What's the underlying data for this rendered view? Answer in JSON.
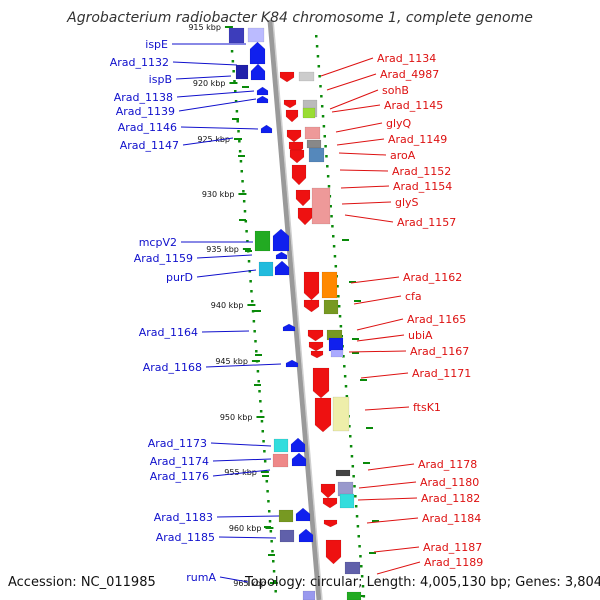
{
  "title": "Agrobacterium radiobacter K84 chromosome 1, complete genome",
  "footer": {
    "accession": "Accession: NC_011985",
    "summary": "Topology: circular; Length: 4,005,130 bp; Genes: 3,804"
  },
  "colors": {
    "left_label": "#1010cc",
    "right_label": "#dd1111",
    "backbone": "#9a9a9a",
    "tick": "#0a8a0a",
    "tick_label": "#111111"
  },
  "ticks": [
    "915 kbp",
    "920 kbp",
    "925 kbp",
    "930 kbp",
    "935 kbp",
    "940 kbp",
    "945 kbp",
    "950 kbp",
    "955 kbp",
    "960 kbp",
    "965 kbp"
  ],
  "left_labels": [
    "ispE",
    "Arad_1132",
    "ispB",
    "Arad_1138",
    "Arad_1139",
    "Arad_1146",
    "Arad_1147",
    "mcpV2",
    "Arad_1159",
    "purD",
    "Arad_1164",
    "Arad_1168",
    "Arad_1173",
    "Arad_1174",
    "Arad_1176",
    "Arad_1183",
    "Arad_1185",
    "rumA"
  ],
  "right_labels": [
    "Arad_1134",
    "Arad_4987",
    "sohB",
    "Arad_1145",
    "glyQ",
    "Arad_1149",
    "aroA",
    "Arad_1152",
    "Arad_1154",
    "glyS",
    "Arad_1157",
    "Arad_1162",
    "cfa",
    "Arad_1165",
    "ubiA",
    "Arad_1167",
    "Arad_1171",
    "ftsK1",
    "Arad_1178",
    "Arad_1180",
    "Arad_1182",
    "Arad_1184",
    "Arad_1187",
    "Arad_1189"
  ]
}
